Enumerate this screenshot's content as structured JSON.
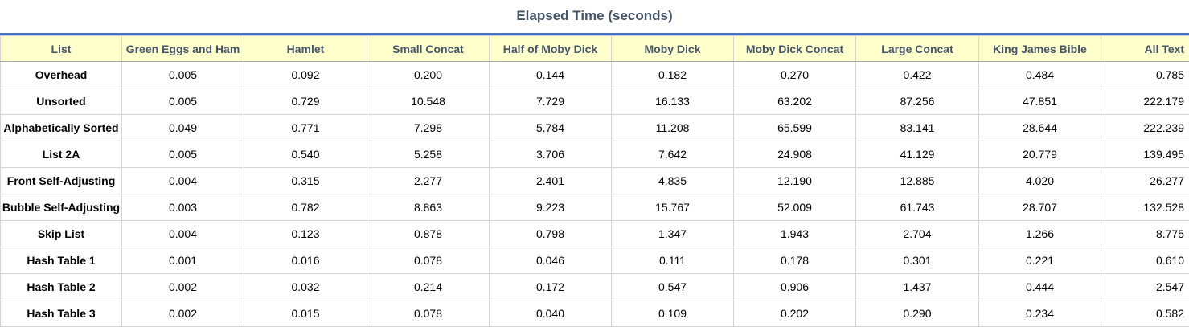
{
  "title": "Elapsed Time (seconds)",
  "colors": {
    "title": "#44546A",
    "header_bg": "#FFFFCC",
    "rule": "#4472C4",
    "grid": "#d4d4d4"
  },
  "chart_data": {
    "type": "table",
    "title": "Elapsed Time (seconds)",
    "corner_header": "List",
    "columns": [
      "Green Eggs and Ham",
      "Hamlet",
      "Small Concat",
      "Half of Moby Dick",
      "Moby Dick",
      "Moby Dick Concat",
      "Large Concat",
      "King James Bible",
      "All Text"
    ],
    "rows": [
      {
        "label": "Overhead",
        "values": [
          "0.005",
          "0.092",
          "0.200",
          "0.144",
          "0.182",
          "0.270",
          "0.422",
          "0.484",
          "0.785"
        ]
      },
      {
        "label": "Unsorted",
        "values": [
          "0.005",
          "0.729",
          "10.548",
          "7.729",
          "16.133",
          "63.202",
          "87.256",
          "47.851",
          "222.179"
        ]
      },
      {
        "label": "Alphabetically Sorted",
        "values": [
          "0.049",
          "0.771",
          "7.298",
          "5.784",
          "11.208",
          "65.599",
          "83.141",
          "28.644",
          "222.239"
        ]
      },
      {
        "label": "List 2A",
        "values": [
          "0.005",
          "0.540",
          "5.258",
          "3.706",
          "7.642",
          "24.908",
          "41.129",
          "20.779",
          "139.495"
        ]
      },
      {
        "label": "Front Self-Adjusting",
        "values": [
          "0.004",
          "0.315",
          "2.277",
          "2.401",
          "4.835",
          "12.190",
          "12.885",
          "4.020",
          "26.277"
        ]
      },
      {
        "label": "Bubble Self-Adjusting",
        "values": [
          "0.003",
          "0.782",
          "8.863",
          "9.223",
          "15.767",
          "52.009",
          "61.743",
          "28.707",
          "132.528"
        ]
      },
      {
        "label": "Skip List",
        "values": [
          "0.004",
          "0.123",
          "0.878",
          "0.798",
          "1.347",
          "1.943",
          "2.704",
          "1.266",
          "8.775"
        ]
      },
      {
        "label": "Hash Table 1",
        "values": [
          "0.001",
          "0.016",
          "0.078",
          "0.046",
          "0.111",
          "0.178",
          "0.301",
          "0.221",
          "0.610"
        ]
      },
      {
        "label": "Hash Table 2",
        "values": [
          "0.002",
          "0.032",
          "0.214",
          "0.172",
          "0.547",
          "0.906",
          "1.437",
          "0.444",
          "2.547"
        ]
      },
      {
        "label": "Hash Table 3",
        "values": [
          "0.002",
          "0.015",
          "0.078",
          "0.040",
          "0.109",
          "0.202",
          "0.290",
          "0.234",
          "0.582"
        ]
      }
    ]
  }
}
